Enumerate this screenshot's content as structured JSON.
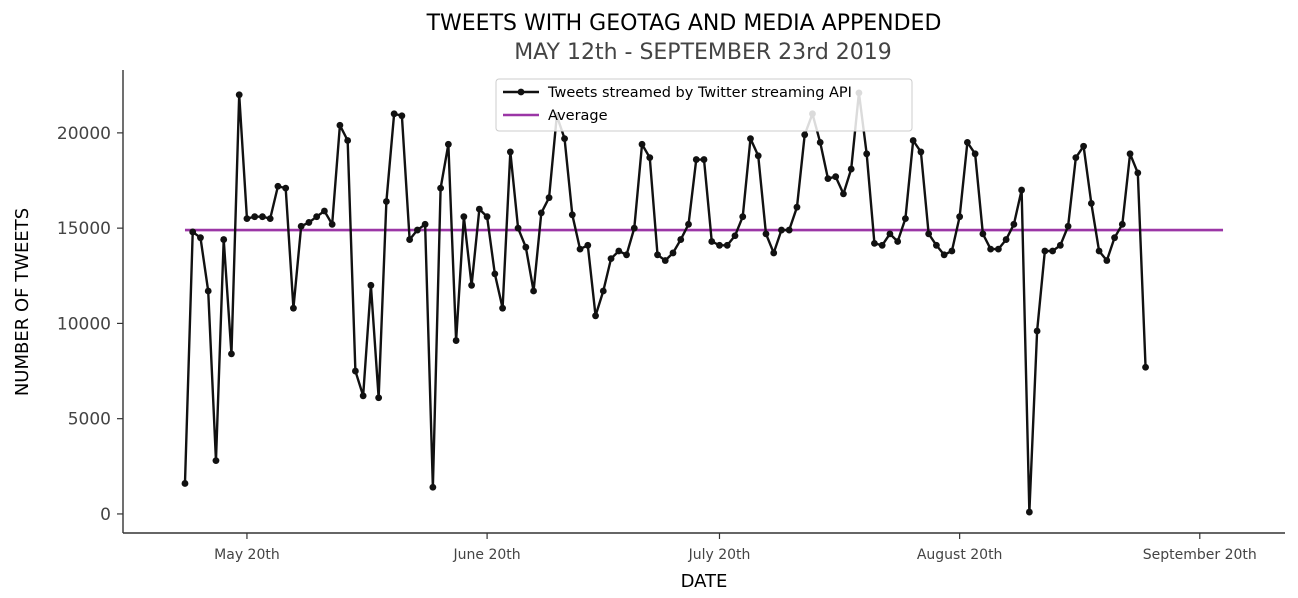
{
  "chart_data": {
    "type": "line",
    "title": "TWEETS WITH GEOTAG AND MEDIA APPENDED",
    "subtitle": "MAY 12th - SEPTEMBER 23rd 2019",
    "xlabel": "DATE",
    "ylabel": "NUMBER OF TWEETS",
    "x_start": "2019-05-12",
    "x_end": "2019-09-23",
    "x_ticks": [
      {
        "date": "2019-05-20",
        "label": "May 20th"
      },
      {
        "date": "2019-06-20",
        "label": "June 20th"
      },
      {
        "date": "2019-07-20",
        "label": "July 20th"
      },
      {
        "date": "2019-08-20",
        "label": "August 20th"
      },
      {
        "date": "2019-09-20",
        "label": "September 20th"
      }
    ],
    "xlim": [
      "2019-05-04",
      "2019-10-01"
    ],
    "ylim": [
      -1000,
      23300
    ],
    "y_ticks": [
      0,
      5000,
      10000,
      15000,
      20000
    ],
    "grid": false,
    "legend_position": "top-center",
    "series": [
      {
        "name": "Tweets streamed by Twitter streaming API",
        "color": "#111111",
        "marker": "circle",
        "values": [
          1600,
          14800,
          14500,
          11700,
          2800,
          14400,
          8400,
          22000,
          15500,
          15600,
          15600,
          15500,
          17200,
          17100,
          10800,
          15100,
          15300,
          15600,
          15900,
          15200,
          20400,
          19600,
          7500,
          6200,
          12000,
          6100,
          16400,
          21000,
          20900,
          14400,
          14900,
          15200,
          1400,
          17100,
          19400,
          9100,
          15600,
          12000,
          16000,
          15600,
          12600,
          10800,
          19000,
          15000,
          14000,
          11700,
          15800,
          16600,
          20900,
          19700,
          15700,
          13900,
          14100,
          10400,
          11700,
          13400,
          13800,
          13600,
          15000,
          19400,
          18700,
          13600,
          13300,
          13700,
          14400,
          15200,
          18600,
          18600,
          14300,
          14100,
          14100,
          14600,
          15600,
          19700,
          18800,
          14700,
          13700,
          14900,
          14900,
          16100,
          19900,
          21000,
          19500,
          17600,
          17700,
          16800,
          18100,
          22100,
          18900,
          14200,
          14100,
          14700,
          14300,
          15500,
          19600,
          19000,
          14700,
          14100,
          13600,
          13800,
          15600,
          19500,
          18900,
          14700,
          13900,
          13900,
          14400,
          15200,
          17000,
          100,
          9600,
          13800,
          13800,
          14100,
          15100,
          18700,
          19300,
          16300,
          13800,
          13300,
          14500,
          15200,
          18900,
          17900,
          7700
        ]
      },
      {
        "name": "Average",
        "color": "#9b36a6",
        "marker": "none",
        "values": [
          14900,
          14900
        ]
      }
    ]
  }
}
